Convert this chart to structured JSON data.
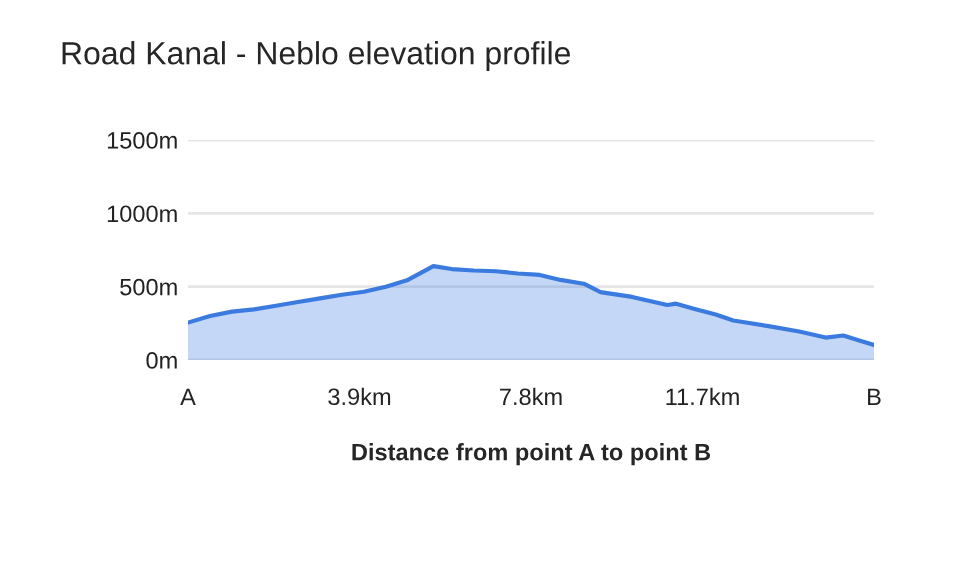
{
  "chart_data": {
    "type": "area",
    "title": "Road Kanal - Neblo elevation profile",
    "xlabel": "Distance from point A to point B",
    "x": [
      0,
      0.5,
      1.0,
      1.5,
      2.0,
      2.5,
      3.0,
      3.5,
      4.0,
      4.5,
      5.0,
      5.58,
      6.0,
      6.5,
      7.0,
      7.5,
      8.0,
      8.47,
      9.0,
      9.38,
      10.1,
      10.9,
      11.1,
      11.5,
      12.0,
      12.4,
      13.2,
      13.9,
      14.5,
      14.9,
      15.3,
      15.6
    ],
    "series": [
      {
        "color": "#3b7be0",
        "values": [
          255,
          300,
          330,
          345,
          370,
          395,
          420,
          445,
          465,
          500,
          546,
          640,
          620,
          610,
          605,
          590,
          580,
          546,
          520,
          463,
          430,
          375,
          384,
          350,
          310,
          269,
          231,
          194,
          153,
          167,
          130,
          102
        ]
      }
    ],
    "xlim": [
      0,
      15.6
    ],
    "xticks": [
      {
        "value": 0,
        "label": "A"
      },
      {
        "value": 3.9,
        "label": "3.9km"
      },
      {
        "value": 7.8,
        "label": "7.8km"
      },
      {
        "value": 11.7,
        "label": "11.7km"
      },
      {
        "value": 15.6,
        "label": "B"
      }
    ],
    "ylim": [
      0,
      1500
    ],
    "yticks": [
      {
        "value": 0,
        "label": "0m"
      },
      {
        "value": 500,
        "label": "500m"
      },
      {
        "value": 1000,
        "label": "1000m"
      },
      {
        "value": 1500,
        "label": "1500m"
      }
    ],
    "grid": "y",
    "legend": false
  }
}
